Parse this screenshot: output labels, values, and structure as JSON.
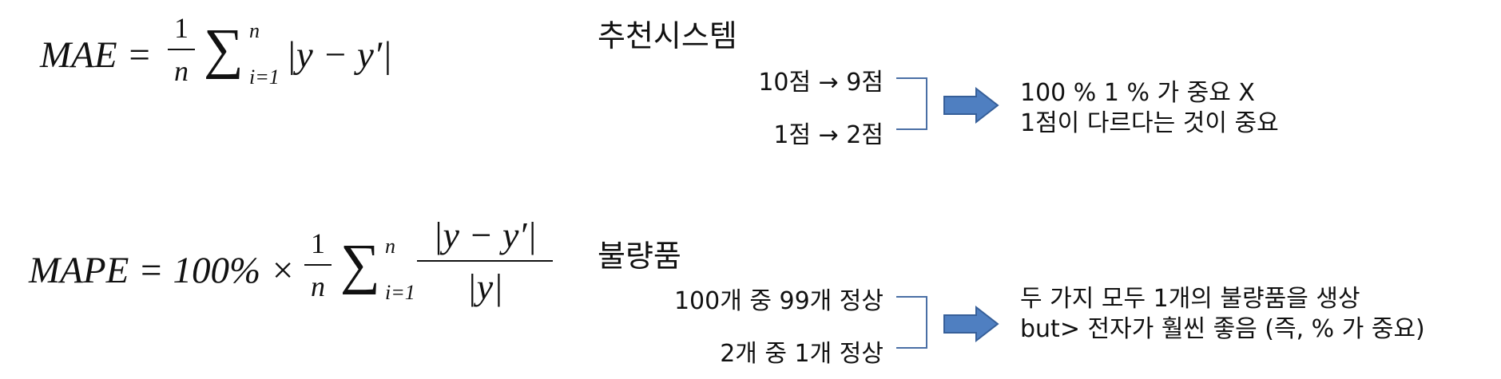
{
  "formulas": {
    "mae": {
      "lhs": "MAE =",
      "frac_num": "1",
      "frac_den": "n",
      "sigma": "∑",
      "upper": "n",
      "lower": "i=1",
      "body": "|y − y′|"
    },
    "mape": {
      "lhs": "MAPE = 100% ×",
      "frac_num": "1",
      "frac_den": "n",
      "sigma": "∑",
      "upper": "n",
      "lower": "i=1",
      "frac2_num": "|y − y′|",
      "frac2_den": "|y|"
    }
  },
  "sections": [
    {
      "heading": "추천시스템",
      "cases": [
        "10점 → 9점",
        "1점 → 2점"
      ],
      "notes": [
        "100 % 1 % 가 중요 X",
        "1점이 다르다는 것이 중요"
      ]
    },
    {
      "heading": "불량품",
      "cases": [
        "100개 중 99개 정상",
        "2개 중 1개 정상"
      ],
      "notes": [
        "두 가지 모두 1개의 불량품을 생상",
        "but> 전자가 훨씬 좋음 (즉, % 가 중요)"
      ]
    }
  ],
  "colors": {
    "arrow_fill": "#4f7fc1",
    "arrow_stroke": "#365f99",
    "bracket": "#4a6fa5"
  }
}
